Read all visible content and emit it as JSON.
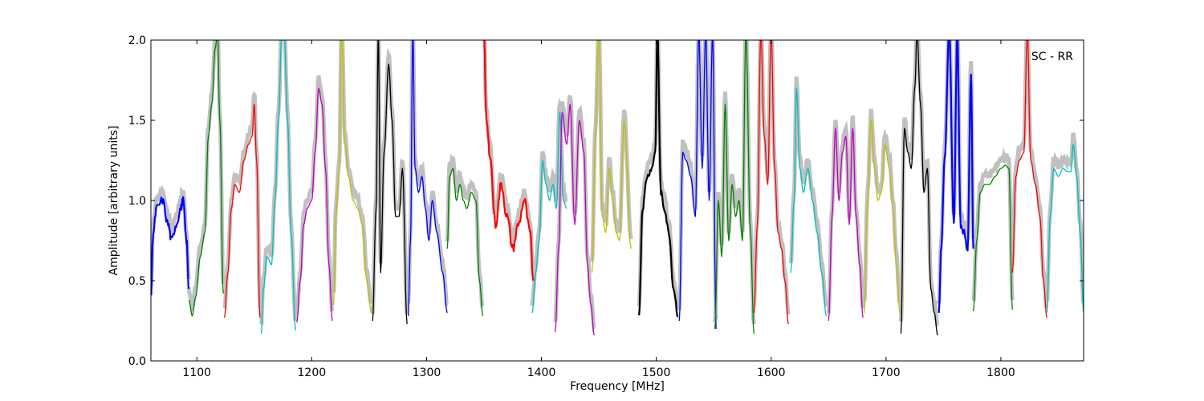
{
  "chart_data": {
    "type": "line",
    "title": "",
    "xlabel": "Frequency [MHz]",
    "ylabel": "Amplitude [arbitrary units]",
    "xlim": [
      1060,
      1872
    ],
    "ylim": [
      0.0,
      2.0
    ],
    "xticks": [
      1100,
      1200,
      1300,
      1400,
      1500,
      1600,
      1700,
      1800
    ],
    "yticks": [
      0.0,
      0.5,
      1.0,
      1.5,
      2.0
    ],
    "xtick_labels": [
      "1100",
      "1200",
      "1300",
      "1400",
      "1500",
      "1600",
      "1700",
      "1800"
    ],
    "ytick_labels": [
      "0.0",
      "0.5",
      "1.0",
      "1.5",
      "2.0"
    ],
    "annotation": "SC - RR",
    "grid": false,
    "background_color": "#c0c0c0",
    "segments": [
      {
        "color": "#0000ff",
        "noise": 0.05,
        "x": [
          1060,
          1062,
          1065,
          1070,
          1075,
          1078,
          1082,
          1086,
          1088,
          1091,
          1093
        ],
        "y": [
          0.4,
          0.8,
          0.95,
          1.0,
          0.85,
          0.75,
          0.85,
          0.95,
          1.0,
          0.75,
          0.45
        ]
      },
      {
        "color": "#008000",
        "x": [
          1093,
          1096,
          1099,
          1103,
          1107,
          1110,
          1113,
          1116,
          1118,
          1120,
          1123
        ],
        "y": [
          0.38,
          0.28,
          0.4,
          0.65,
          0.8,
          1.4,
          1.6,
          1.95,
          2.05,
          1.5,
          0.42
        ]
      },
      {
        "color": "#ff0000",
        "x": [
          1124,
          1127,
          1130,
          1133,
          1137,
          1141,
          1145,
          1148,
          1150,
          1152,
          1155
        ],
        "y": [
          0.27,
          0.55,
          0.95,
          1.1,
          1.05,
          1.25,
          1.35,
          1.4,
          1.6,
          1.25,
          0.27
        ]
      },
      {
        "color": "#00bfbf",
        "x": [
          1156,
          1158,
          1161,
          1165,
          1168,
          1171,
          1174,
          1176,
          1179,
          1182,
          1186
        ],
        "y": [
          0.17,
          0.45,
          0.65,
          0.6,
          1.0,
          1.5,
          2.05,
          2.05,
          1.5,
          0.8,
          0.19
        ]
      },
      {
        "color": "#bf00bf",
        "x": [
          1187,
          1190,
          1193,
          1196,
          1200,
          1203,
          1206,
          1209,
          1212,
          1215,
          1218
        ],
        "y": [
          0.24,
          0.5,
          0.85,
          0.95,
          1.0,
          1.3,
          1.7,
          1.6,
          1.2,
          0.6,
          0.25
        ]
      },
      {
        "color": "#bfbf00",
        "x": [
          1219,
          1221,
          1224,
          1226,
          1229,
          1232,
          1236,
          1240,
          1244,
          1248,
          1252
        ],
        "y": [
          0.35,
          0.9,
          1.2,
          2.05,
          1.35,
          1.15,
          1.0,
          0.95,
          0.85,
          0.5,
          0.3
        ]
      },
      {
        "color": "#000000",
        "x": [
          1253,
          1256,
          1258,
          1260,
          1263,
          1267,
          1270,
          1273,
          1276,
          1279,
          1283
        ],
        "y": [
          0.25,
          0.95,
          2.05,
          0.55,
          1.3,
          1.85,
          1.5,
          0.9,
          0.9,
          1.2,
          0.23
        ]
      },
      {
        "color": "#0000ff",
        "x": [
          1284,
          1286,
          1288,
          1290,
          1293,
          1296,
          1299,
          1302,
          1305,
          1309,
          1314,
          1318
        ],
        "y": [
          0.28,
          0.75,
          2.05,
          1.2,
          1.05,
          1.15,
          0.95,
          0.75,
          1.0,
          0.8,
          0.55,
          0.3
        ]
      },
      {
        "color": "#008000",
        "x": [
          1318,
          1320,
          1323,
          1326,
          1329,
          1332,
          1335,
          1339,
          1343,
          1346,
          1349
        ],
        "y": [
          0.7,
          1.15,
          1.2,
          1.0,
          1.1,
          1.0,
          0.95,
          1.05,
          1.0,
          0.5,
          0.28
        ]
      },
      {
        "color": "#ff0000",
        "noise": 0.06,
        "x": [
          1350,
          1352,
          1355,
          1360,
          1365,
          1370,
          1375,
          1380,
          1385,
          1390,
          1393
        ],
        "y": [
          2.05,
          1.5,
          1.3,
          0.85,
          1.1,
          0.9,
          0.7,
          0.85,
          1.0,
          0.8,
          0.5
        ]
      },
      {
        "color": "#00bfbf",
        "x": [
          1392,
          1395,
          1398,
          1401,
          1404,
          1407,
          1410,
          1413,
          1416,
          1419,
          1422
        ],
        "y": [
          0.3,
          0.55,
          0.75,
          1.25,
          1.1,
          1.0,
          1.1,
          0.95,
          1.55,
          1.0,
          0.95
        ]
      },
      {
        "color": "#bf00bf",
        "x": [
          1412,
          1415,
          1418,
          1422,
          1425,
          1429,
          1433,
          1437,
          1440,
          1443,
          1446
        ],
        "y": [
          0.18,
          0.7,
          1.55,
          1.35,
          1.6,
          0.85,
          1.5,
          1.3,
          0.6,
          0.35,
          0.16
        ]
      },
      {
        "color": "#bfbf00",
        "x": [
          1444,
          1447,
          1450,
          1453,
          1456,
          1459,
          1462,
          1465,
          1468,
          1472,
          1478
        ],
        "y": [
          0.55,
          1.4,
          2.05,
          0.9,
          0.8,
          1.2,
          1.0,
          0.8,
          0.75,
          1.5,
          0.7
        ]
      },
      {
        "color": "#000000",
        "noise": 0.035,
        "x": [
          1485,
          1488,
          1492,
          1496,
          1499,
          1501,
          1504,
          1507,
          1511,
          1515,
          1519
        ],
        "y": [
          0.3,
          0.95,
          1.15,
          1.2,
          1.3,
          2.05,
          1.05,
          0.95,
          0.8,
          0.45,
          0.28
        ]
      },
      {
        "color": "#0000ff",
        "x": [
          1520,
          1523,
          1526,
          1530,
          1534,
          1537,
          1540,
          1543,
          1546,
          1549,
          1552
        ],
        "y": [
          0.25,
          1.3,
          1.25,
          1.15,
          0.9,
          2.05,
          1.2,
          2.05,
          1.0,
          2.05,
          0.2
        ]
      },
      {
        "color": "#008000",
        "x": [
          1551,
          1554,
          1557,
          1560,
          1563,
          1566,
          1569,
          1572,
          1575,
          1578,
          1582,
          1585
        ],
        "y": [
          0.2,
          1.0,
          0.65,
          1.6,
          0.75,
          1.1,
          0.9,
          1.0,
          0.75,
          2.05,
          0.8,
          0.17
        ]
      },
      {
        "color": "#ff0000",
        "x": [
          1585,
          1588,
          1591,
          1594,
          1597,
          1600,
          1603,
          1606,
          1609,
          1612,
          1615
        ],
        "y": [
          0.3,
          0.85,
          2.05,
          1.4,
          1.1,
          2.05,
          1.2,
          0.8,
          0.7,
          0.5,
          0.23
        ]
      },
      {
        "color": "#00bfbf",
        "x": [
          1617,
          1620,
          1622,
          1625,
          1628,
          1632,
          1636,
          1640,
          1644,
          1648
        ],
        "y": [
          0.55,
          1.0,
          1.7,
          1.2,
          1.05,
          1.2,
          1.0,
          0.8,
          0.55,
          0.28
        ]
      },
      {
        "color": "#bf00bf",
        "x": [
          1650,
          1653,
          1656,
          1659,
          1662,
          1665,
          1668,
          1671,
          1674,
          1677,
          1680
        ],
        "y": [
          0.25,
          0.9,
          1.45,
          1.0,
          1.3,
          1.4,
          0.85,
          1.45,
          0.9,
          0.6,
          0.27
        ]
      },
      {
        "color": "#bfbf00",
        "x": [
          1681,
          1684,
          1687,
          1690,
          1693,
          1696,
          1699,
          1703,
          1706,
          1709,
          1712
        ],
        "y": [
          0.3,
          1.0,
          1.5,
          1.2,
          1.0,
          1.05,
          1.35,
          1.2,
          0.95,
          0.6,
          0.3
        ]
      },
      {
        "color": "#000000",
        "x": [
          1713,
          1716,
          1719,
          1722,
          1725,
          1727,
          1730,
          1733,
          1736,
          1739,
          1742,
          1745
        ],
        "y": [
          0.17,
          1.45,
          1.3,
          1.2,
          1.7,
          2.05,
          1.6,
          1.05,
          1.2,
          0.45,
          0.3,
          0.16
        ]
      },
      {
        "color": "#0000ff",
        "noise": 0.04,
        "x": [
          1746,
          1748,
          1751,
          1755,
          1759,
          1762,
          1765,
          1768,
          1771,
          1774,
          1776
        ],
        "y": [
          0.3,
          0.7,
          1.25,
          2.05,
          0.85,
          2.05,
          0.85,
          0.8,
          0.7,
          1.8,
          0.7
        ]
      },
      {
        "color": "#008000",
        "x": [
          1776,
          1779,
          1782,
          1786,
          1790,
          1795,
          1800,
          1804,
          1807,
          1810
        ],
        "y": [
          0.31,
          0.75,
          1.05,
          1.1,
          1.1,
          1.15,
          1.2,
          1.22,
          1.2,
          0.32
        ]
      },
      {
        "color": "#ff0000",
        "x": [
          1810,
          1813,
          1816,
          1820,
          1823,
          1826,
          1830,
          1834,
          1837,
          1840
        ],
        "y": [
          0.55,
          1.15,
          1.25,
          1.3,
          2.05,
          1.25,
          1.1,
          0.9,
          0.5,
          0.27
        ]
      },
      {
        "color": "#00bfbf",
        "x": [
          1840,
          1843,
          1846,
          1850,
          1854,
          1858,
          1861,
          1863,
          1866,
          1869,
          1872
        ],
        "y": [
          0.3,
          0.9,
          1.2,
          1.15,
          1.2,
          1.18,
          1.18,
          1.35,
          1.15,
          0.8,
          0.3
        ]
      }
    ]
  }
}
